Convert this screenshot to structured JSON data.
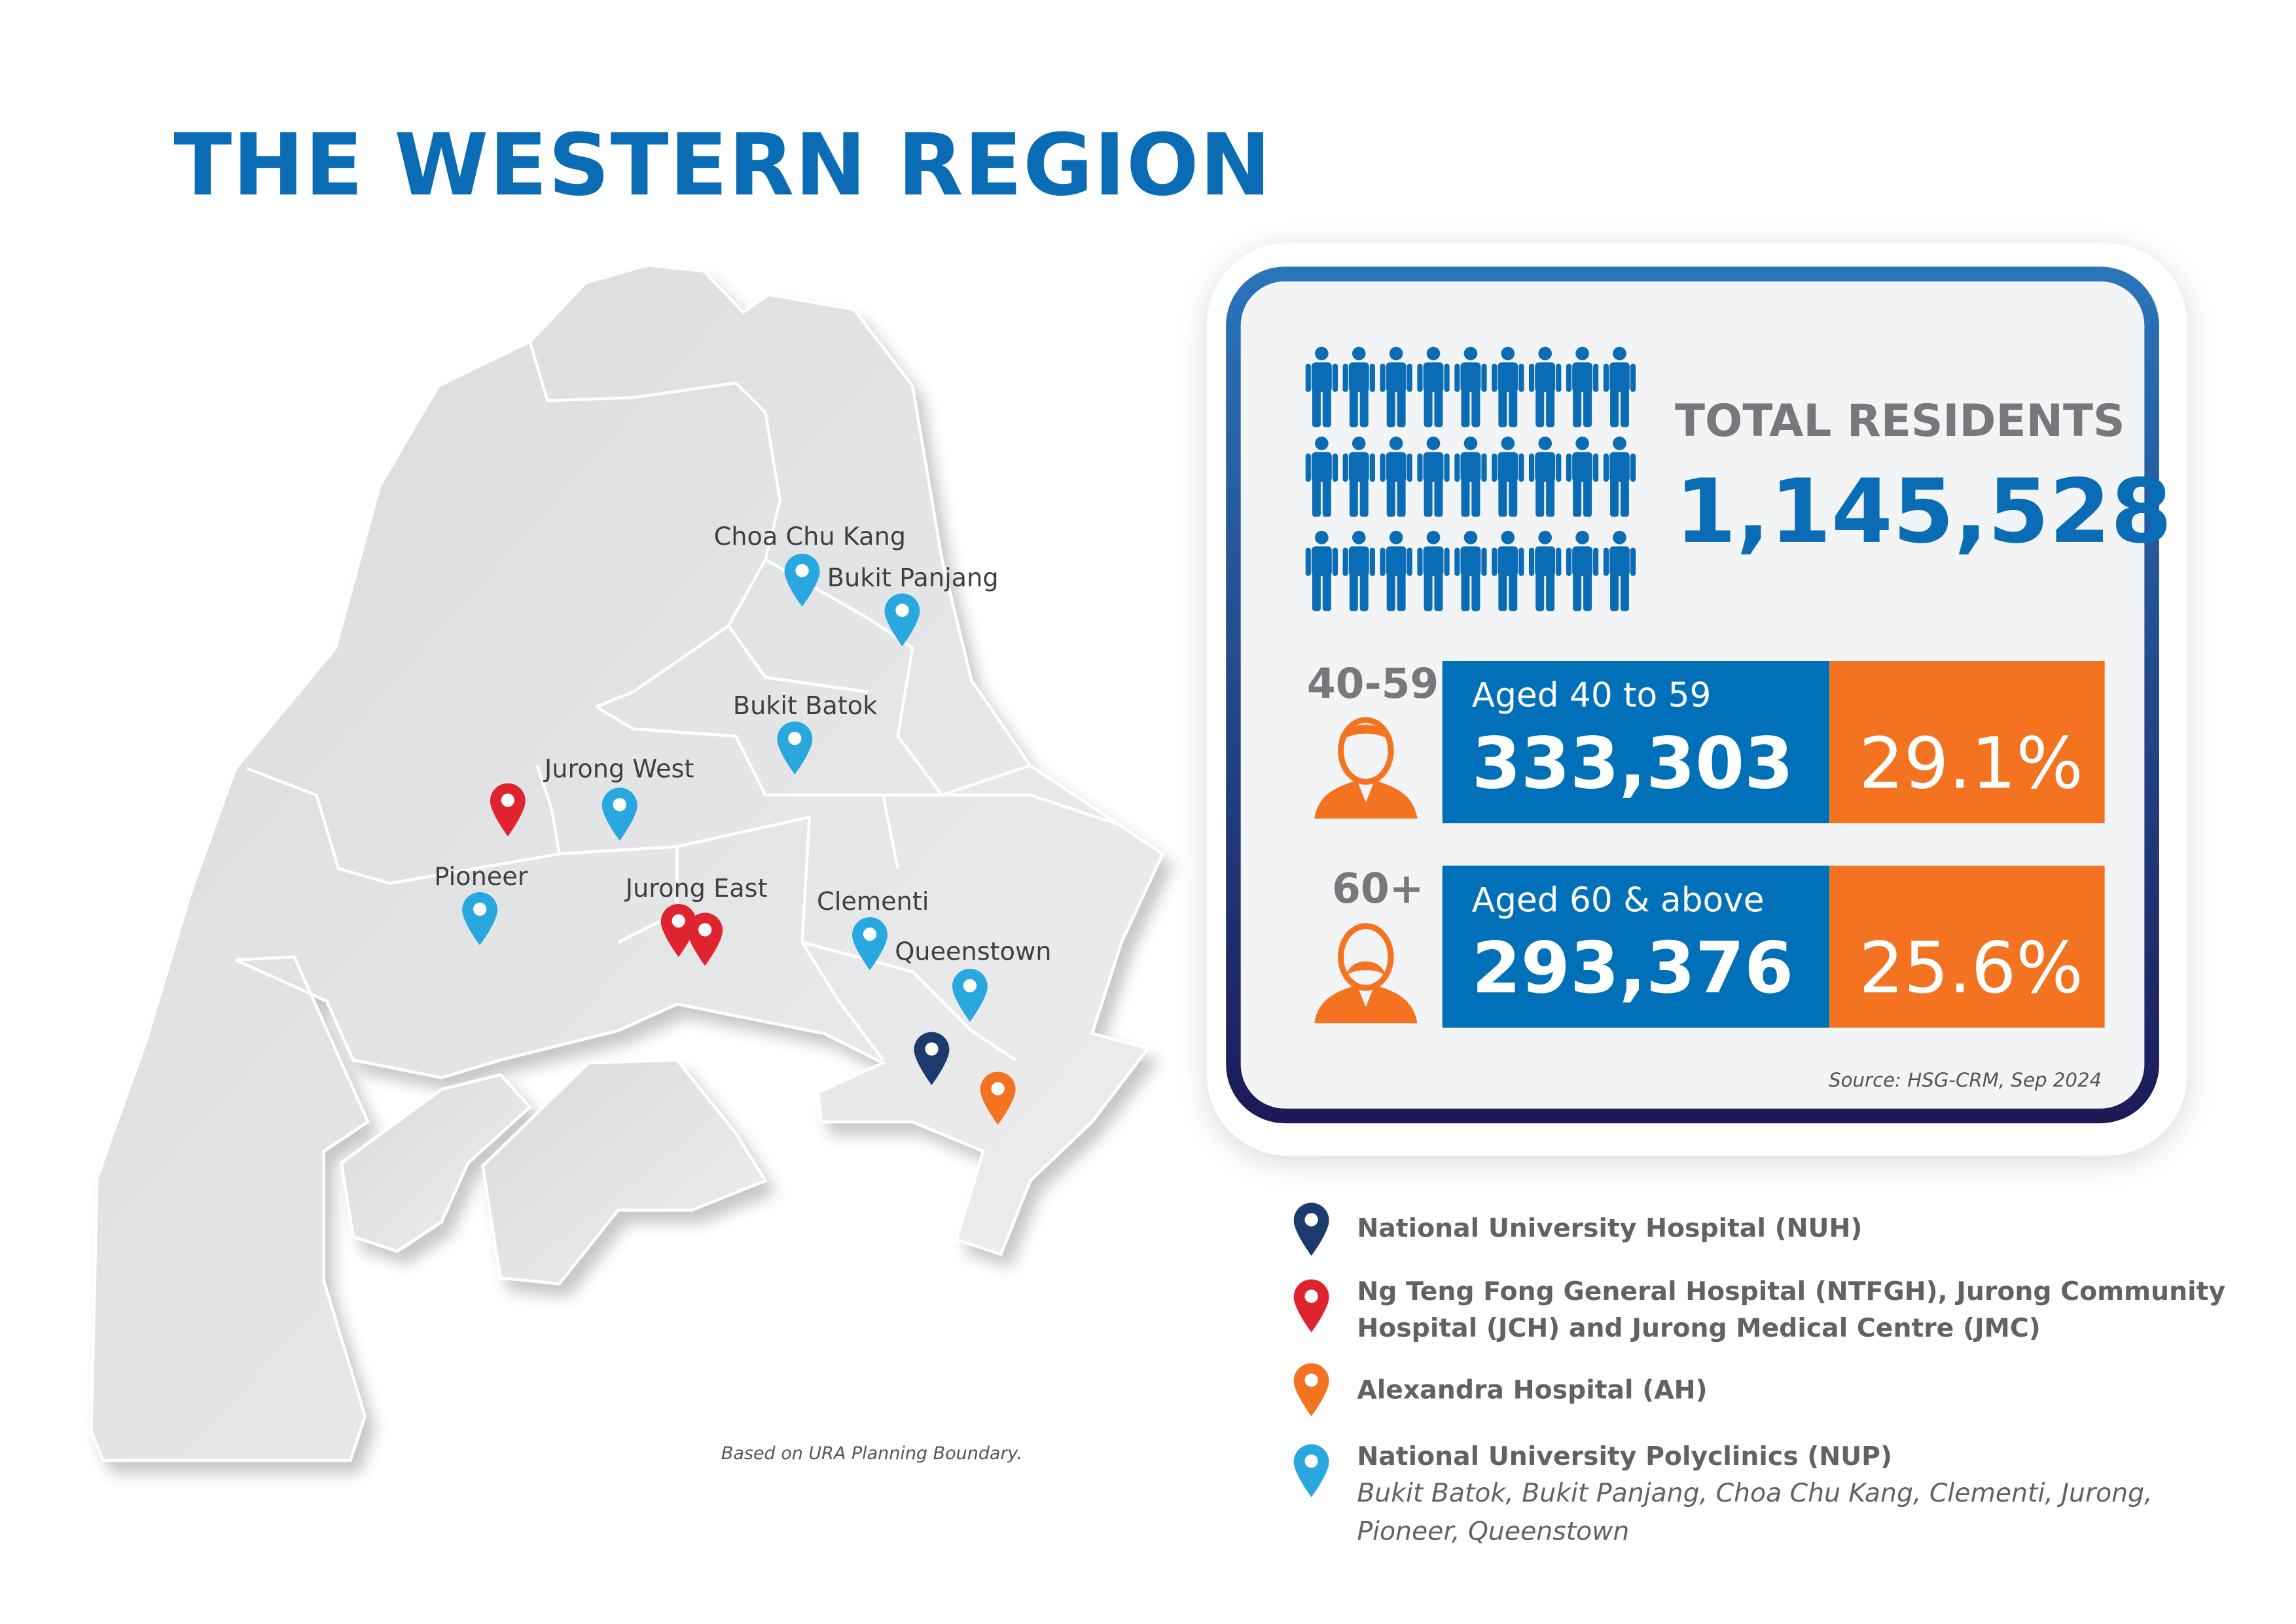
{
  "title": "THE WESTERN REGION",
  "map": {
    "labels": {
      "choa_chu_kang": "Choa Chu Kang",
      "bukit_panjang": "Bukit Panjang",
      "bukit_batok": "Bukit Batok",
      "jurong_west": "Jurong West",
      "pioneer": "Pioneer",
      "jurong_east": "Jurong East",
      "clementi": "Clementi",
      "queenstown": "Queenstown"
    },
    "footnote": "Based on URA Planning Boundary."
  },
  "stats": {
    "total_label": "TOTAL RESIDENTS",
    "total_value": "1,145,528",
    "groups": [
      {
        "tag": "40-59",
        "label": "Aged 40 to 59",
        "value": "333,303",
        "percent": "29.1%"
      },
      {
        "tag": "60+",
        "label": "Aged 60 & above",
        "value": "293,376",
        "percent": "25.6%"
      }
    ],
    "source": "Source: HSG-CRM, Sep 2024"
  },
  "legend": [
    {
      "lines": [
        "National University Hospital (NUH)"
      ],
      "color": "#1c3a6b"
    },
    {
      "lines": [
        "Ng Teng Fong General Hospital (NTFGH), Jurong Community",
        "Hospital (JCH) and Jurong Medical Centre (JMC)"
      ],
      "color": "#e0242f"
    },
    {
      "lines": [
        "Alexandra Hospital (AH)"
      ],
      "color": "#f37321"
    },
    {
      "lines": [
        "National University Polyclinics (NUP)"
      ],
      "sub": [
        "Bukit Batok, Bukit Panjang, Choa Chu Kang, Clementi, Jurong,",
        "Pioneer, Queenstown"
      ],
      "color": "#29a8e0"
    }
  ],
  "colors": {
    "blue": "#0071b9",
    "orange": "#f37321",
    "navy": "#1c3a6b",
    "red": "#e0242f",
    "light_blue": "#29a8e0"
  }
}
